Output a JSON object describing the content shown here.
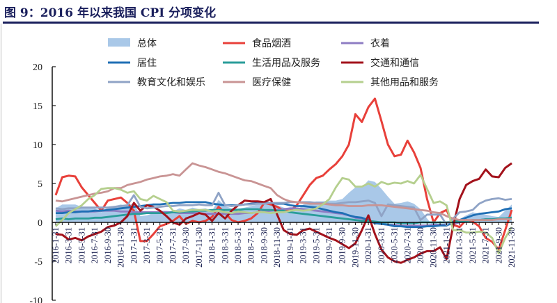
{
  "title": "图 9：2016 年以来我国 CPI 分项变化",
  "chart_data": {
    "type": "line",
    "title": "图 9：2016 年以来我国 CPI 分项变化",
    "xlabel": "",
    "ylabel": "",
    "ylim": [
      -10,
      20
    ],
    "yticks": [
      -10,
      -5,
      0,
      5,
      10,
      15,
      20
    ],
    "legend_position": "top",
    "x_start": "2016-01",
    "x_labels": [
      "2016-1-31",
      "2016-3-31",
      "2016-5-31",
      "2016-7-31",
      "2016-9-30",
      "2016-11-30",
      "2017-1-31",
      "2017-3-31",
      "2017-5-31",
      "2017-7-31",
      "2017-9-30",
      "2017-11-30",
      "2018-1-31",
      "2018-3-31",
      "2018-5-31",
      "2018-7-31",
      "2018-9-30",
      "2018-11-30",
      "2019-1-31",
      "2019-3-31",
      "2019-5-31",
      "2019-7-31",
      "2019-9-30",
      "2019-11-30",
      "2020-1-31",
      "2020-3-31",
      "2020-5-31",
      "2020-7-31",
      "2020-9-30",
      "2020-11-30",
      "2021-1-31",
      "2021-3-31",
      "2021-5-31",
      "2021-7-31",
      "2021-9-30",
      "2021-11-30"
    ],
    "series": [
      {
        "name": "总体",
        "kind": "area",
        "color": "#a9c8e8",
        "values": [
          1.8,
          2.3,
          2.3,
          2.3,
          2.0,
          1.9,
          1.8,
          1.3,
          1.9,
          2.1,
          2.3,
          2.1,
          2.5,
          0.8,
          0.9,
          1.2,
          1.5,
          1.5,
          1.4,
          1.8,
          1.6,
          1.9,
          1.7,
          1.8,
          1.5,
          2.9,
          2.1,
          1.8,
          1.8,
          1.9,
          2.1,
          2.3,
          2.5,
          2.5,
          2.2,
          1.9,
          1.7,
          1.5,
          2.3,
          2.5,
          2.7,
          2.7,
          2.8,
          2.8,
          3.0,
          3.8,
          4.5,
          4.5,
          5.4,
          5.2,
          4.3,
          3.3,
          2.4,
          2.5,
          2.7,
          2.4,
          1.7,
          0.5,
          -0.5,
          0.2,
          -0.3,
          -0.2,
          0.4,
          0.9,
          1.3,
          1.1,
          1.0,
          0.8,
          0.7,
          1.5,
          2.3
        ]
      },
      {
        "name": "食品烟酒",
        "kind": "line",
        "color": "#e8403a",
        "values": [
          3.5,
          5.8,
          6.0,
          5.9,
          4.5,
          3.5,
          2.5,
          1.5,
          2.8,
          3.0,
          3.2,
          2.5,
          1.5,
          -2.4,
          -2.4,
          -1.5,
          -0.5,
          -0.2,
          0.2,
          0.8,
          -0.2,
          0.2,
          0.0,
          0.2,
          0.7,
          2.0,
          1.2,
          0.3,
          0.0,
          0.2,
          0.5,
          1.2,
          2.5,
          2.3,
          2.0,
          1.5,
          1.5,
          2.2,
          3.5,
          4.8,
          5.7,
          6.0,
          6.8,
          7.5,
          8.5,
          10.0,
          13.9,
          12.9,
          14.8,
          15.9,
          13.0,
          10.0,
          8.5,
          8.7,
          10.5,
          9.0,
          7.0,
          3.0,
          0.0,
          1.2,
          1.6,
          -0.3,
          -0.6,
          0.3,
          0.1,
          -0.5,
          -2.0,
          -2.5,
          -3.5,
          -1.0,
          1.6
        ]
      },
      {
        "name": "衣着",
        "kind": "line",
        "color": "#8e7cc3",
        "values": [
          1.5,
          1.4,
          1.5,
          1.4,
          1.4,
          1.4,
          1.4,
          1.5,
          1.5,
          1.5,
          1.4,
          1.4,
          1.3,
          1.3,
          1.3,
          1.3,
          1.3,
          1.3,
          1.3,
          1.2,
          1.2,
          1.2,
          1.2,
          1.1,
          1.1,
          1.1,
          1.1,
          1.1,
          1.1,
          1.2,
          1.2,
          1.3,
          1.4,
          1.5,
          1.6,
          1.7,
          1.8,
          1.8,
          1.7,
          1.6,
          1.5,
          1.4,
          1.3,
          1.2,
          1.1,
          0.9,
          0.6,
          0.5,
          0.2,
          -0.1,
          -0.2,
          -0.3,
          -0.3,
          -0.4,
          -0.4,
          -0.4,
          -0.4,
          -0.4,
          -0.3,
          -0.3,
          -0.3,
          -0.2,
          0.0,
          0.2,
          0.3,
          0.3,
          0.4,
          0.4,
          0.4,
          0.5,
          0.5
        ]
      },
      {
        "name": "居住",
        "kind": "line",
        "color": "#1f6fb5",
        "values": [
          1.2,
          1.2,
          1.3,
          1.3,
          1.4,
          1.4,
          1.5,
          1.5,
          1.6,
          1.7,
          1.8,
          1.9,
          2.0,
          2.1,
          2.2,
          2.3,
          2.3,
          2.4,
          2.5,
          2.5,
          2.6,
          2.6,
          2.6,
          2.6,
          2.4,
          2.3,
          2.2,
          2.2,
          2.2,
          2.3,
          2.4,
          2.5,
          2.5,
          2.5,
          2.4,
          2.4,
          2.2,
          2.1,
          2.1,
          2.0,
          1.9,
          1.7,
          1.5,
          1.3,
          1.2,
          0.9,
          0.7,
          0.6,
          0.3,
          -0.1,
          -0.2,
          -0.3,
          -0.5,
          -0.5,
          -0.6,
          -0.6,
          -0.6,
          -0.5,
          -0.5,
          -0.4,
          -0.4,
          0.0,
          0.3,
          0.6,
          0.9,
          1.1,
          1.2,
          1.3,
          1.4,
          1.7,
          1.8
        ]
      },
      {
        "name": "生活用品及服务",
        "kind": "line",
        "color": "#2a9d9a",
        "values": [
          0.4,
          0.5,
          0.4,
          0.5,
          0.5,
          0.5,
          0.6,
          0.6,
          0.7,
          0.8,
          0.9,
          1.0,
          1.1,
          1.1,
          1.2,
          1.2,
          1.2,
          1.2,
          1.3,
          1.3,
          1.4,
          1.4,
          1.5,
          1.5,
          1.6,
          1.6,
          1.6,
          1.6,
          1.6,
          1.7,
          1.7,
          1.7,
          1.6,
          1.6,
          1.5,
          1.5,
          1.3,
          1.2,
          1.1,
          1.0,
          0.9,
          0.8,
          0.7,
          0.6,
          0.5,
          0.4,
          0.3,
          0.2,
          0.2,
          0.1,
          0.0,
          0.0,
          0.0,
          -0.1,
          -0.1,
          -0.1,
          0.0,
          0.0,
          0.0,
          0.0,
          0.0,
          0.1,
          0.2,
          0.2,
          0.3,
          0.3,
          0.4,
          0.4,
          0.5,
          0.5,
          0.6
        ]
      },
      {
        "name": "交通和通信",
        "kind": "line",
        "color": "#a3121b",
        "values": [
          -1.5,
          -1.6,
          -2.2,
          -2.0,
          -2.3,
          -1.8,
          -1.5,
          -1.2,
          -0.6,
          -0.4,
          0.0,
          0.8,
          2.5,
          1.5,
          2.2,
          2.0,
          1.5,
          0.8,
          0.0,
          -0.3,
          0.5,
          0.8,
          1.2,
          1.0,
          0.2,
          1.2,
          0.5,
          1.5,
          2.2,
          2.8,
          2.7,
          2.7,
          2.6,
          3.0,
          1.0,
          -1.0,
          -1.5,
          -1.6,
          -1.0,
          -0.8,
          -1.2,
          -1.6,
          -2.0,
          -2.3,
          -2.8,
          -3.3,
          -2.7,
          -1.0,
          0.9,
          -1.5,
          -3.5,
          -4.5,
          -5.0,
          -5.2,
          -4.8,
          -4.5,
          -4.0,
          -3.7,
          -3.7,
          -3.2,
          -4.7,
          -0.5,
          3.0,
          4.8,
          5.3,
          5.6,
          6.8,
          5.9,
          5.8,
          7.0,
          7.6
        ]
      },
      {
        "name": "教育文化和娱乐",
        "kind": "line",
        "color": "#8fa3c6",
        "values": [
          1.8,
          1.7,
          1.8,
          1.8,
          1.9,
          1.9,
          1.9,
          1.9,
          1.9,
          2.0,
          2.1,
          2.2,
          3.5,
          2.0,
          1.8,
          1.9,
          2.0,
          2.1,
          2.1,
          2.2,
          2.2,
          2.2,
          2.3,
          2.2,
          2.2,
          3.8,
          2.2,
          2.1,
          2.2,
          2.3,
          2.3,
          2.4,
          2.4,
          2.5,
          2.5,
          2.5,
          2.6,
          2.6,
          2.6,
          2.6,
          2.5,
          2.5,
          2.4,
          2.4,
          2.5,
          2.6,
          2.6,
          2.7,
          2.8,
          2.5,
          0.8,
          2.3,
          2.2,
          2.1,
          2.0,
          1.9,
          0.3,
          1.0,
          1.0,
          1.0,
          -0.3,
          0.5,
          1.3,
          1.4,
          1.6,
          2.4,
          2.8,
          3.0,
          3.1,
          2.9,
          3.0
        ]
      },
      {
        "name": "医疗保健",
        "kind": "line",
        "color": "#c99494",
        "values": [
          2.8,
          2.7,
          2.9,
          3.1,
          3.3,
          3.5,
          3.7,
          3.8,
          4.0,
          4.4,
          4.4,
          4.8,
          5.0,
          5.2,
          5.5,
          5.7,
          5.9,
          6.0,
          6.2,
          6.0,
          6.8,
          7.6,
          7.3,
          7.1,
          6.8,
          6.5,
          6.3,
          6.0,
          5.7,
          5.4,
          5.3,
          5.0,
          4.7,
          4.4,
          3.5,
          3.0,
          2.7,
          2.6,
          2.5,
          2.4,
          2.4,
          2.4,
          2.3,
          2.2,
          2.2,
          2.1,
          2.1,
          2.1,
          2.2,
          2.2,
          2.2,
          2.1,
          2.0,
          1.9,
          1.8,
          1.7,
          1.6,
          1.5,
          1.3,
          1.2,
          0.8,
          0.5,
          0.3,
          0.3,
          0.3,
          0.3,
          0.3,
          0.3,
          0.4,
          0.4,
          0.4
        ]
      },
      {
        "name": "其他用品和服务",
        "kind": "line",
        "color": "#b5cf8e",
        "values": [
          -0.5,
          0.3,
          1.2,
          1.7,
          2.2,
          3.0,
          3.5,
          4.3,
          4.4,
          4.4,
          4.2,
          3.8,
          4.0,
          3.0,
          2.8,
          3.4,
          3.0,
          2.6,
          1.5,
          1.4,
          1.5,
          1.6,
          1.6,
          1.6,
          1.4,
          1.5,
          1.3,
          1.2,
          1.4,
          1.3,
          1.2,
          1.3,
          1.3,
          1.2,
          1.3,
          1.3,
          1.5,
          1.6,
          1.5,
          1.6,
          1.8,
          2.3,
          3.0,
          4.5,
          5.7,
          5.5,
          4.6,
          4.6,
          5.0,
          4.6,
          5.2,
          4.9,
          5.1,
          5.0,
          5.3,
          5.0,
          6.1,
          4.3,
          2.5,
          2.7,
          2.2,
          -1.0,
          -1.0,
          -1.3,
          -1.3,
          -1.2,
          -1.3,
          -2.0,
          -4.0,
          -2.0,
          -0.6
        ]
      }
    ]
  }
}
